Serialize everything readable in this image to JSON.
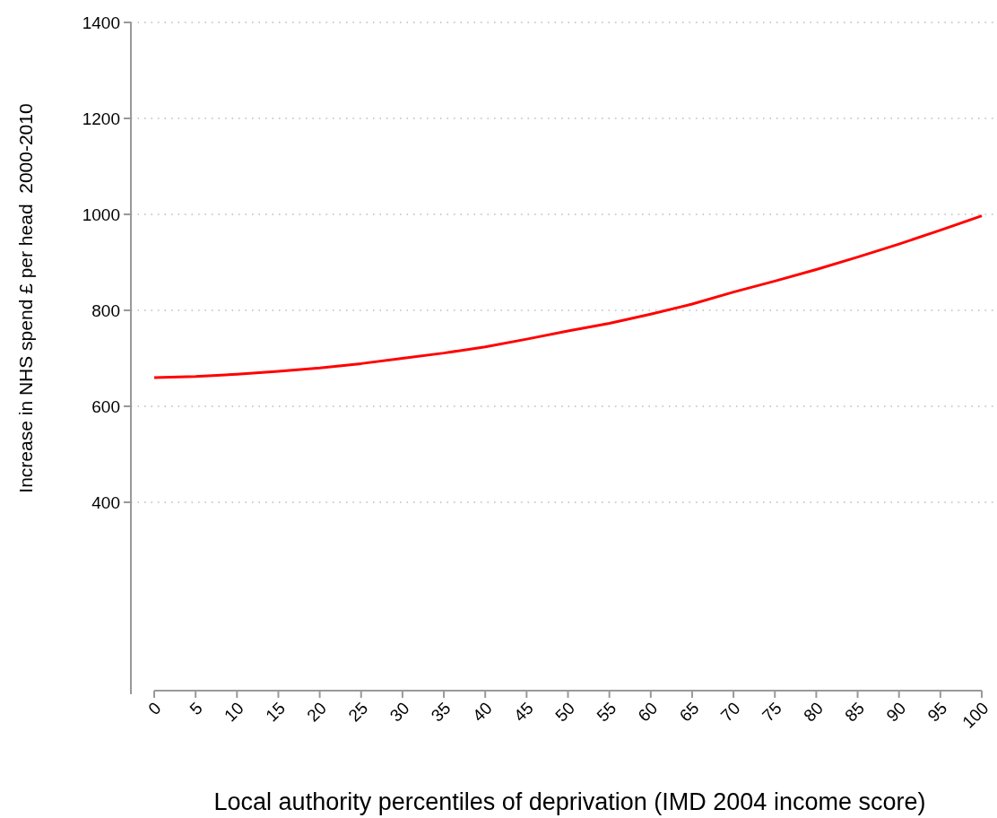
{
  "chart_data": {
    "type": "line",
    "xlabel": "Local authority percentiles of deprivation (IMD 2004 income score)",
    "ylabel": "Increase in NHS spend £ per head  2000-2010",
    "x": [
      0,
      5,
      10,
      15,
      20,
      25,
      30,
      35,
      40,
      45,
      50,
      55,
      60,
      65,
      70,
      75,
      80,
      85,
      90,
      95,
      100
    ],
    "series": [
      {
        "color": "#ff0000",
        "values": [
          660,
          662,
          667,
          673,
          680,
          689,
          700,
          711,
          724,
          740,
          757,
          773,
          792,
          813,
          838,
          861,
          885,
          911,
          938,
          967,
          997
        ]
      }
    ],
    "xlim": [
      0,
      100
    ],
    "xticks": [
      0,
      5,
      10,
      15,
      20,
      25,
      30,
      35,
      40,
      45,
      50,
      55,
      60,
      65,
      70,
      75,
      80,
      85,
      90,
      95,
      100
    ],
    "ylim": [
      0,
      1400
    ],
    "yticks": [
      400,
      600,
      800,
      1000,
      1200,
      1400
    ],
    "grid": "y",
    "marker": "none",
    "line_style": "solid"
  }
}
